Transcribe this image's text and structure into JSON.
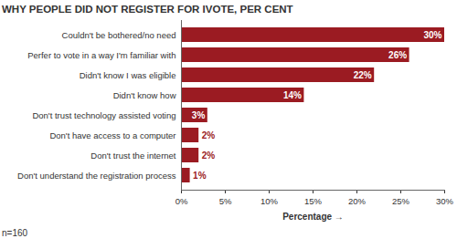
{
  "chart_data": {
    "type": "bar",
    "title": "WHY PEOPLE DID NOT REGISTER FOR IVOTE, PER CENT",
    "caption": "n=160",
    "orientation": "horizontal",
    "categories": [
      "Couldn't be bothered/no need",
      "Perfer to vote in a way I'm familiar with",
      "Didn't know I was eligible",
      "Didn't know how",
      "Don't trust technology assisted voting",
      "Don't have access to a computer",
      "Don't trust the internet",
      "Don't understand the registration process"
    ],
    "values": [
      30,
      26,
      22,
      14,
      3,
      2,
      2,
      1
    ],
    "value_labels": [
      "30%",
      "26%",
      "22%",
      "14%",
      "3%",
      "2%",
      "2%",
      "1%"
    ],
    "data_labels": true,
    "color": "#9b1b22",
    "xlabel": "Percentage",
    "xlim": [
      0,
      30
    ],
    "xticks": [
      {
        "value": 0,
        "label": "0%"
      },
      {
        "value": 5,
        "label": "5%"
      },
      {
        "value": 10,
        "label": "10%"
      },
      {
        "value": 15,
        "label": "15%"
      },
      {
        "value": 20,
        "label": "20%"
      },
      {
        "value": 25,
        "label": "25%"
      },
      {
        "value": 30,
        "label": "30%"
      }
    ],
    "grid": false
  }
}
